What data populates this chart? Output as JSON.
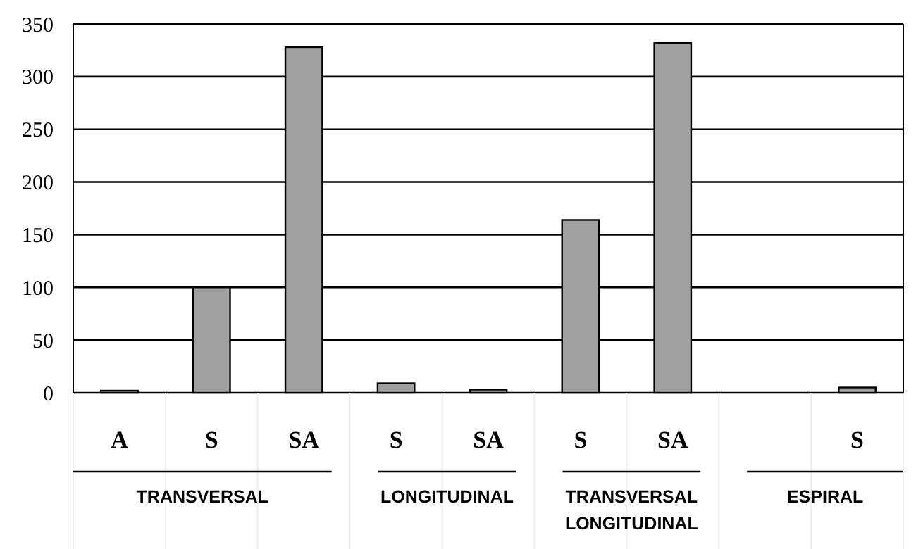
{
  "chart_data": {
    "type": "bar",
    "categories": [
      "A",
      "S",
      "SA",
      "S",
      "SA",
      "S",
      "SA",
      null,
      "S"
    ],
    "values": [
      2,
      100,
      328,
      9,
      3,
      164,
      332,
      null,
      5
    ],
    "color": "#a0a0a0",
    "ylim": [
      0,
      350
    ],
    "yticks": [
      0,
      50,
      100,
      150,
      200,
      250,
      300,
      350
    ],
    "grid": "y",
    "annotations": [
      "TRANSVERSAL",
      "LONGITUDINAL",
      "TRANSVERSAL LONGITUDINAL",
      "ESPIRAL"
    ]
  }
}
